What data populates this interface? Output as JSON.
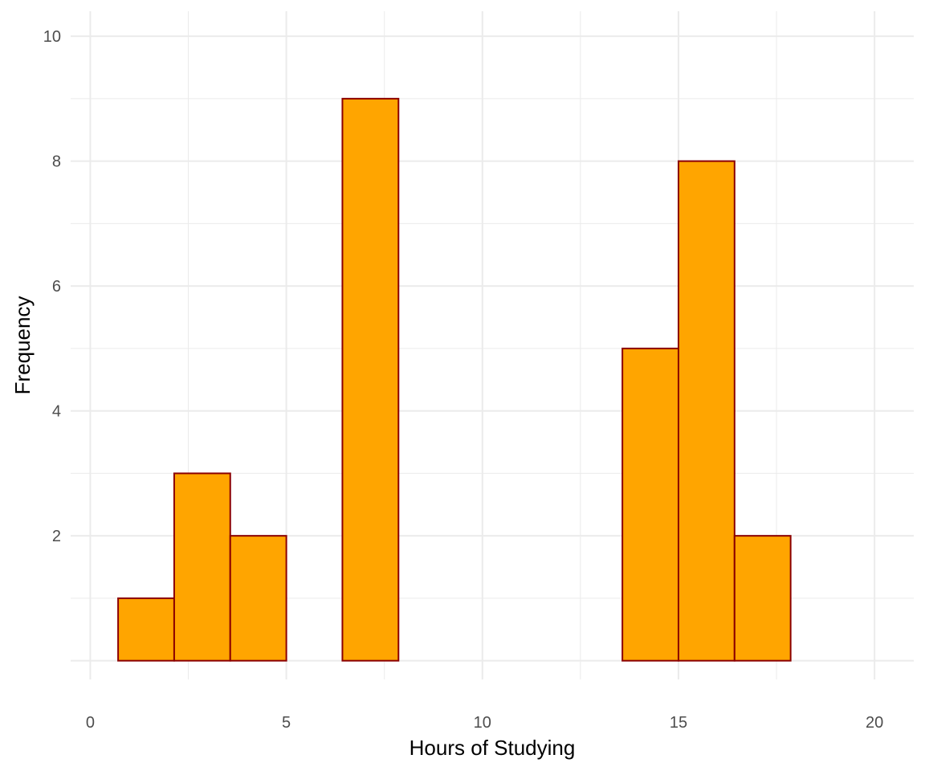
{
  "chart_data": {
    "type": "histogram",
    "xlabel": "Hours of Studying",
    "ylabel": "Frequency",
    "xlim": [
      -0.5,
      21
    ],
    "ylim": [
      -0.3,
      10.4
    ],
    "x_ticks": [
      0,
      5,
      10,
      15,
      20
    ],
    "y_ticks": [
      2,
      4,
      6,
      8,
      10
    ],
    "grid": true,
    "colors": {
      "bar_fill": "#FFA500",
      "bar_stroke": "#8B0000",
      "grid": "#EBEBEB"
    },
    "bins": [
      {
        "x0": 0.71,
        "x1": 2.14,
        "count": 1
      },
      {
        "x0": 2.14,
        "x1": 3.57,
        "count": 3
      },
      {
        "x0": 3.57,
        "x1": 5.0,
        "count": 2
      },
      {
        "x0": 5.0,
        "x1": 6.43,
        "count": 0
      },
      {
        "x0": 6.43,
        "x1": 7.86,
        "count": 9
      },
      {
        "x0": 7.86,
        "x1": 9.29,
        "count": 0
      },
      {
        "x0": 9.29,
        "x1": 10.71,
        "count": 0
      },
      {
        "x0": 10.71,
        "x1": 12.14,
        "count": 0
      },
      {
        "x0": 12.14,
        "x1": 13.57,
        "count": 0
      },
      {
        "x0": 13.57,
        "x1": 15.0,
        "count": 5
      },
      {
        "x0": 15.0,
        "x1": 16.43,
        "count": 8
      },
      {
        "x0": 16.43,
        "x1": 17.86,
        "count": 2
      },
      {
        "x0": 17.86,
        "x1": 19.29,
        "count": 0
      }
    ]
  }
}
